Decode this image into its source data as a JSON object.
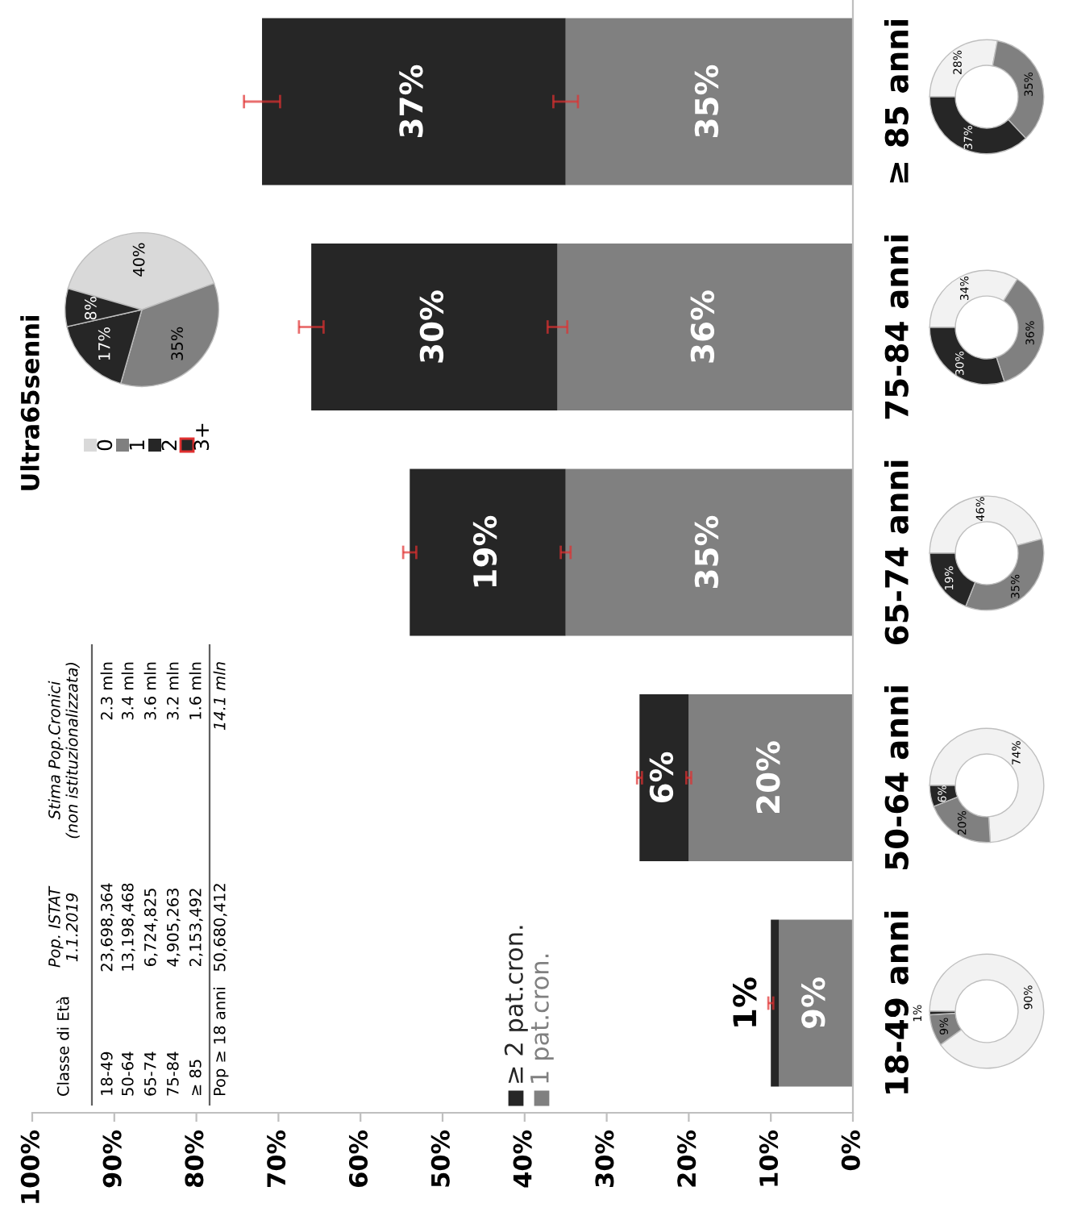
{
  "chart_data": [
    {
      "type": "bar",
      "orientation": "horizontal",
      "stacked": true,
      "categories": [
        "≥ 85 anni",
        "75-84 anni",
        "65-74 anni",
        "50-64 anni",
        "18-49 anni"
      ],
      "series": [
        {
          "name": "1 pat.cron.",
          "color": "#808080",
          "values": [
            35,
            36,
            35,
            20,
            9
          ],
          "errors": [
            1.5,
            1.2,
            0.6,
            0.3,
            null
          ],
          "value_labels": [
            "35%",
            "36%",
            "35%",
            "20%",
            "9%"
          ]
        },
        {
          "name": "≥ 2 pat.cron.",
          "color": "#262626",
          "values": [
            37,
            30,
            19,
            6,
            1
          ],
          "errors": [
            2.2,
            1.5,
            0.8,
            0.3,
            0.3
          ],
          "value_labels": [
            "37%",
            "30%",
            "19%",
            "6%",
            "1%"
          ]
        }
      ],
      "xlim": [
        100,
        0
      ],
      "xticks": [
        {
          "value": 0,
          "label": "0%"
        },
        {
          "value": 10,
          "label": "10%"
        },
        {
          "value": 20,
          "label": "20%"
        },
        {
          "value": 30,
          "label": "30%"
        },
        {
          "value": 40,
          "label": "40%"
        },
        {
          "value": 50,
          "label": "50%"
        },
        {
          "value": 60,
          "label": "60%"
        },
        {
          "value": 70,
          "label": "70%"
        },
        {
          "value": 80,
          "label": "80%"
        },
        {
          "value": 90,
          "label": "90%"
        },
        {
          "value": 100,
          "label": "100%"
        }
      ],
      "grid": false,
      "legend": "bottom"
    },
    {
      "type": "pie",
      "title": "Ultra65senni",
      "categories": [
        "0",
        "1",
        "2",
        "3+"
      ],
      "values": [
        40,
        35,
        17,
        8
      ],
      "colors": [
        "#d9d9d9",
        "#808080",
        "#262626",
        "#262626"
      ],
      "value_labels": [
        "40%",
        "35%",
        "17%",
        "8%"
      ],
      "legend": "bottom left"
    },
    {
      "type": "donut",
      "categories": [
        null,
        null,
        null
      ],
      "values": [
        28,
        35,
        37
      ],
      "colors": [
        "#f2f2f2",
        "#808080",
        "#262626"
      ],
      "value_labels": [
        "28%",
        "35%",
        "37%"
      ]
    },
    {
      "type": "donut",
      "categories": [
        null,
        null,
        null
      ],
      "values": [
        34,
        36,
        30
      ],
      "colors": [
        "#f2f2f2",
        "#808080",
        "#262626"
      ],
      "value_labels": [
        "34%",
        "36%",
        "30%"
      ]
    },
    {
      "type": "donut",
      "categories": [
        null,
        null,
        null
      ],
      "values": [
        46,
        35,
        19
      ],
      "colors": [
        "#f2f2f2",
        "#808080",
        "#262626"
      ],
      "value_labels": [
        "46%",
        "35%",
        "19%"
      ]
    },
    {
      "type": "donut",
      "categories": [
        null,
        null,
        null
      ],
      "values": [
        74,
        20,
        6
      ],
      "colors": [
        "#f2f2f2",
        "#808080",
        "#262626"
      ],
      "value_labels": [
        "74%",
        "20%",
        "6%"
      ]
    },
    {
      "type": "donut",
      "categories": [
        null,
        null,
        null
      ],
      "values": [
        90,
        9,
        1
      ],
      "colors": [
        "#f2f2f2",
        "#808080",
        "#262626"
      ],
      "value_labels": [
        "90%",
        "9%",
        "1%"
      ]
    },
    {
      "type": "other",
      "annotations": [
        "Classe di Età",
        "Pop. ISTAT\n1.1.2019",
        "Stima Pop.Cronici\n(non istituzionalizzata)",
        "18-49",
        "23,698,364",
        "2.3 mln",
        "50-64",
        "13,198,468",
        "3.4 mln",
        "65-74",
        "6,724,825",
        "3.6 mln",
        "75-84",
        "4,905,263",
        "3.2 mln",
        "≥ 85",
        "2,153,492",
        "1.6 mln",
        "Pop ≥ 18 anni",
        "50,680,412",
        "14.1 mln"
      ]
    }
  ]
}
